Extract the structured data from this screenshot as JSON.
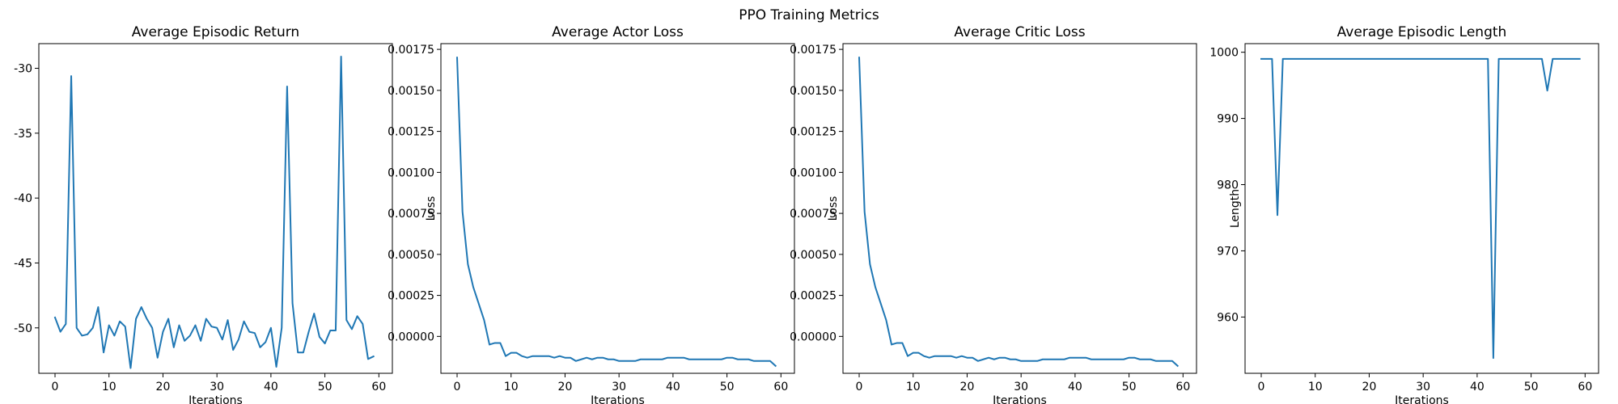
{
  "figure": {
    "suptitle": "PPO Training Metrics"
  },
  "chart_data": [
    {
      "type": "line",
      "title": "Average Episodic Return",
      "xlabel": "Iterations",
      "ylabel": "",
      "xlim": [
        -3,
        62.5
      ],
      "ylim": [
        -53.5,
        -28.1
      ],
      "xticks": [
        0,
        10,
        20,
        30,
        40,
        50,
        60
      ],
      "yticks": [
        -50,
        -45,
        -40,
        -35,
        -30
      ],
      "color": "#1f77b4",
      "grid": false,
      "series": [
        {
          "x": [
            0,
            1,
            2,
            3,
            4,
            5,
            6,
            7,
            8,
            9,
            10,
            11,
            12,
            13,
            14,
            15,
            16,
            17,
            18,
            19,
            20,
            21,
            22,
            23,
            24,
            25,
            26,
            27,
            28,
            29,
            30,
            31,
            32,
            33,
            34,
            35,
            36,
            37,
            38,
            39,
            40,
            41,
            42,
            43,
            44,
            45,
            46,
            47,
            48,
            49,
            50,
            51,
            52,
            53,
            54,
            55,
            56,
            57,
            58,
            59
          ],
          "y": [
            -49.2,
            -50.3,
            -49.7,
            -30.6,
            -50.0,
            -50.6,
            -50.5,
            -50.0,
            -48.4,
            -51.9,
            -49.8,
            -50.6,
            -49.5,
            -49.9,
            -53.1,
            -49.3,
            -48.4,
            -49.3,
            -50.0,
            -52.3,
            -50.3,
            -49.3,
            -51.5,
            -49.8,
            -51.0,
            -50.6,
            -49.8,
            -51.0,
            -49.3,
            -49.9,
            -50.0,
            -50.9,
            -49.4,
            -51.7,
            -50.9,
            -49.5,
            -50.3,
            -50.4,
            -51.5,
            -51.1,
            -50.0,
            -53.0,
            -50.0,
            -31.4,
            -48.1,
            -51.9,
            -51.9,
            -50.3,
            -48.9,
            -50.7,
            -51.2,
            -50.2,
            -50.2,
            -29.1,
            -49.4,
            -50.1,
            -49.1,
            -49.7,
            -52.4,
            -52.2
          ]
        }
      ]
    },
    {
      "type": "line",
      "title": "Average Actor Loss",
      "xlabel": "Iterations",
      "ylabel": "Loss",
      "xlim": [
        -3,
        62.5
      ],
      "ylim": [
        -0.000225,
        0.001785
      ],
      "xticks": [
        0,
        10,
        20,
        30,
        40,
        50,
        60
      ],
      "yticks": [
        0.0,
        0.00025,
        0.0005,
        0.00075,
        0.001,
        0.00125,
        0.0015,
        0.00175
      ],
      "ytick_labels": [
        "0.00000",
        "0.00025",
        "0.00050",
        "0.00075",
        "0.00100",
        "0.00125",
        "0.00150",
        "0.00175"
      ],
      "color": "#1f77b4",
      "grid": false,
      "series": [
        {
          "x": [
            0,
            1,
            2,
            3,
            4,
            5,
            6,
            7,
            8,
            9,
            10,
            11,
            12,
            13,
            14,
            15,
            16,
            17,
            18,
            19,
            20,
            21,
            22,
            23,
            24,
            25,
            26,
            27,
            28,
            29,
            30,
            31,
            32,
            33,
            34,
            35,
            36,
            37,
            38,
            39,
            40,
            41,
            42,
            43,
            44,
            45,
            46,
            47,
            48,
            49,
            50,
            51,
            52,
            53,
            54,
            55,
            56,
            57,
            58,
            59
          ],
          "y": [
            0.0017,
            0.00076,
            0.00044,
            0.0003,
            0.0002,
            0.0001,
            -5e-05,
            -4e-05,
            -4e-05,
            -0.00012,
            -0.0001,
            -0.0001,
            -0.00012,
            -0.00013,
            -0.00012,
            -0.00012,
            -0.00012,
            -0.00012,
            -0.00013,
            -0.00012,
            -0.00013,
            -0.00013,
            -0.00015,
            -0.00014,
            -0.00013,
            -0.00014,
            -0.00013,
            -0.00013,
            -0.00014,
            -0.00014,
            -0.00015,
            -0.00015,
            -0.00015,
            -0.00015,
            -0.00014,
            -0.00014,
            -0.00014,
            -0.00014,
            -0.00014,
            -0.00013,
            -0.00013,
            -0.00013,
            -0.00013,
            -0.00014,
            -0.00014,
            -0.00014,
            -0.00014,
            -0.00014,
            -0.00014,
            -0.00014,
            -0.00013,
            -0.00013,
            -0.00014,
            -0.00014,
            -0.00014,
            -0.00015,
            -0.00015,
            -0.00015,
            -0.00015,
            -0.00018
          ]
        }
      ]
    },
    {
      "type": "line",
      "title": "Average Critic Loss",
      "xlabel": "Iterations",
      "ylabel": "Loss",
      "xlim": [
        -3,
        62.5
      ],
      "ylim": [
        -0.000225,
        0.001785
      ],
      "xticks": [
        0,
        10,
        20,
        30,
        40,
        50,
        60
      ],
      "yticks": [
        0.0,
        0.00025,
        0.0005,
        0.00075,
        0.001,
        0.00125,
        0.0015,
        0.00175
      ],
      "ytick_labels": [
        "0.00000",
        "0.00025",
        "0.00050",
        "0.00075",
        "0.00100",
        "0.00125",
        "0.00150",
        "0.00175"
      ],
      "color": "#1f77b4",
      "grid": false,
      "series": [
        {
          "x": [
            0,
            1,
            2,
            3,
            4,
            5,
            6,
            7,
            8,
            9,
            10,
            11,
            12,
            13,
            14,
            15,
            16,
            17,
            18,
            19,
            20,
            21,
            22,
            23,
            24,
            25,
            26,
            27,
            28,
            29,
            30,
            31,
            32,
            33,
            34,
            35,
            36,
            37,
            38,
            39,
            40,
            41,
            42,
            43,
            44,
            45,
            46,
            47,
            48,
            49,
            50,
            51,
            52,
            53,
            54,
            55,
            56,
            57,
            58,
            59
          ],
          "y": [
            0.0017,
            0.00076,
            0.00044,
            0.0003,
            0.0002,
            0.0001,
            -5e-05,
            -4e-05,
            -4e-05,
            -0.00012,
            -0.0001,
            -0.0001,
            -0.00012,
            -0.00013,
            -0.00012,
            -0.00012,
            -0.00012,
            -0.00012,
            -0.00013,
            -0.00012,
            -0.00013,
            -0.00013,
            -0.00015,
            -0.00014,
            -0.00013,
            -0.00014,
            -0.00013,
            -0.00013,
            -0.00014,
            -0.00014,
            -0.00015,
            -0.00015,
            -0.00015,
            -0.00015,
            -0.00014,
            -0.00014,
            -0.00014,
            -0.00014,
            -0.00014,
            -0.00013,
            -0.00013,
            -0.00013,
            -0.00013,
            -0.00014,
            -0.00014,
            -0.00014,
            -0.00014,
            -0.00014,
            -0.00014,
            -0.00014,
            -0.00013,
            -0.00013,
            -0.00014,
            -0.00014,
            -0.00014,
            -0.00015,
            -0.00015,
            -0.00015,
            -0.00015,
            -0.00018
          ]
        }
      ]
    },
    {
      "type": "line",
      "title": "Average Episodic Length",
      "xlabel": "Iterations",
      "ylabel": "Length",
      "xlim": [
        -3,
        62.5
      ],
      "ylim": [
        951.5,
        1001.3
      ],
      "xticks": [
        0,
        10,
        20,
        30,
        40,
        50,
        60
      ],
      "yticks": [
        960,
        970,
        980,
        990,
        1000
      ],
      "color": "#1f77b4",
      "grid": false,
      "series": [
        {
          "x": [
            0,
            1,
            2,
            3,
            4,
            5,
            6,
            7,
            8,
            9,
            10,
            11,
            12,
            13,
            14,
            15,
            16,
            17,
            18,
            19,
            20,
            21,
            22,
            23,
            24,
            25,
            26,
            27,
            28,
            29,
            30,
            31,
            32,
            33,
            34,
            35,
            36,
            37,
            38,
            39,
            40,
            41,
            42,
            43,
            44,
            45,
            46,
            47,
            48,
            49,
            50,
            51,
            52,
            53,
            54,
            55,
            56,
            57,
            58,
            59
          ],
          "y": [
            999,
            999,
            999,
            975.4,
            999,
            999,
            999,
            999,
            999,
            999,
            999,
            999,
            999,
            999,
            999,
            999,
            999,
            999,
            999,
            999,
            999,
            999,
            999,
            999,
            999,
            999,
            999,
            999,
            999,
            999,
            999,
            999,
            999,
            999,
            999,
            999,
            999,
            999,
            999,
            999,
            999,
            999,
            999,
            953.8,
            999,
            999,
            999,
            999,
            999,
            999,
            999,
            999,
            999,
            994.2,
            999,
            999,
            999,
            999,
            999,
            999
          ]
        }
      ]
    }
  ]
}
